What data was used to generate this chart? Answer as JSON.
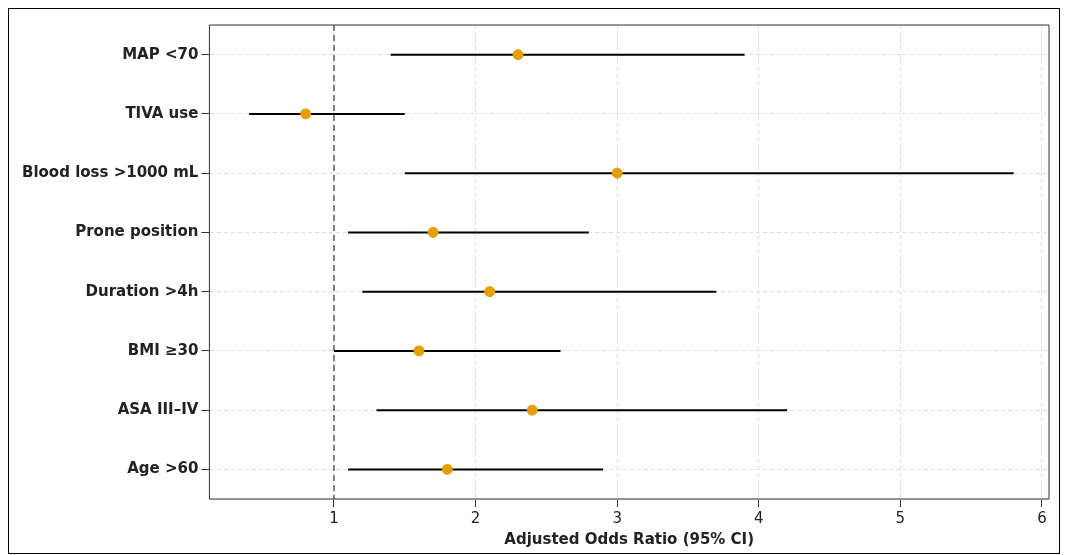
{
  "chart_data": {
    "type": "scatter",
    "orientation": "horizontal",
    "xlabel": "Adjusted Odds Ratio (95% CI)",
    "categories": [
      "MAP <70",
      "TIVA use",
      "Blood loss >1000 mL",
      "Prone position",
      "Duration >4h",
      "BMI ≥30",
      "ASA III–IV",
      "Age >60"
    ],
    "values": [
      2.3,
      0.8,
      3.0,
      1.7,
      2.1,
      1.6,
      2.4,
      1.8
    ],
    "errors": [
      [
        1.4,
        3.9
      ],
      [
        0.4,
        1.5
      ],
      [
        1.5,
        5.8
      ],
      [
        1.1,
        2.8
      ],
      [
        1.2,
        3.7
      ],
      [
        1.0,
        2.6
      ],
      [
        1.3,
        4.2
      ],
      [
        1.1,
        2.9
      ]
    ],
    "color": "#e69f00",
    "marker": "circle",
    "xlim": [
      0.12,
      6.05
    ],
    "xticks": [
      1,
      2,
      3,
      4,
      5,
      6
    ],
    "grid": true,
    "legend": false,
    "ref_lines": [
      {
        "axis": "x",
        "value": 1,
        "color": "#808080",
        "line_style": "dashed"
      }
    ]
  }
}
